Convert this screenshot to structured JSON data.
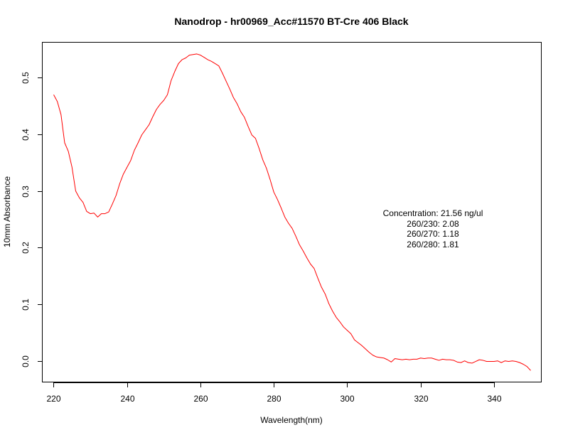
{
  "chart_data": {
    "type": "line",
    "title": "Nanodrop - hr00969_Acc#11570 BT-Cre 406 Black",
    "xlabel": "Wavelength(nm)",
    "ylabel": "10mm Absorbance",
    "xlim": [
      217,
      353
    ],
    "ylim": [
      -0.038,
      0.562
    ],
    "x_ticks": [
      220,
      240,
      260,
      280,
      300,
      320,
      340
    ],
    "y_ticks": [
      0.0,
      0.1,
      0.2,
      0.3,
      0.4,
      0.5
    ],
    "x_tick_labels": [
      "220",
      "240",
      "260",
      "280",
      "300",
      "320",
      "340"
    ],
    "y_tick_labels": [
      "0.0",
      "0.1",
      "0.2",
      "0.3",
      "0.4",
      "0.5"
    ],
    "grid": false,
    "series": [
      {
        "color": "#ff0000",
        "x": [
          220,
          221,
          222,
          223,
          224,
          225,
          226,
          227,
          228,
          229,
          230,
          231,
          232,
          233,
          234,
          235,
          236,
          237,
          238,
          239,
          240,
          241,
          242,
          243,
          244,
          245,
          246,
          247,
          248,
          249,
          250,
          251,
          252,
          253,
          254,
          255,
          256,
          257,
          258,
          259,
          260,
          261,
          262,
          263,
          264,
          265,
          266,
          267,
          268,
          269,
          270,
          271,
          272,
          273,
          274,
          275,
          276,
          277,
          278,
          279,
          280,
          281,
          282,
          283,
          284,
          285,
          286,
          287,
          288,
          289,
          290,
          291,
          292,
          293,
          294,
          295,
          296,
          297,
          298,
          299,
          300,
          301,
          302,
          303,
          304,
          305,
          306,
          307,
          308,
          309,
          310,
          311,
          312,
          313,
          314,
          315,
          316,
          317,
          318,
          319,
          320,
          321,
          322,
          323,
          324,
          325,
          326,
          327,
          328,
          329,
          330,
          331,
          332,
          333,
          334,
          335,
          336,
          337,
          338,
          339,
          340,
          341,
          342,
          343,
          344,
          345,
          346,
          347,
          348,
          349,
          350
        ],
        "y": [
          0.47,
          0.458,
          0.435,
          0.385,
          0.37,
          0.342,
          0.3,
          0.288,
          0.28,
          0.264,
          0.26,
          0.261,
          0.254,
          0.26,
          0.26,
          0.263,
          0.277,
          0.292,
          0.313,
          0.33,
          0.342,
          0.354,
          0.372,
          0.385,
          0.399,
          0.408,
          0.417,
          0.431,
          0.444,
          0.453,
          0.46,
          0.47,
          0.495,
          0.511,
          0.525,
          0.532,
          0.535,
          0.54,
          0.541,
          0.542,
          0.54,
          0.536,
          0.532,
          0.529,
          0.525,
          0.521,
          0.508,
          0.494,
          0.48,
          0.465,
          0.454,
          0.44,
          0.43,
          0.414,
          0.399,
          0.393,
          0.375,
          0.355,
          0.34,
          0.32,
          0.298,
          0.285,
          0.27,
          0.254,
          0.243,
          0.234,
          0.22,
          0.205,
          0.194,
          0.182,
          0.171,
          0.163,
          0.146,
          0.13,
          0.118,
          0.101,
          0.088,
          0.077,
          0.069,
          0.06,
          0.054,
          0.048,
          0.037,
          0.032,
          0.027,
          0.021,
          0.015,
          0.01,
          0.007,
          0.006,
          0.005,
          0.002,
          -0.002,
          0.004,
          0.003,
          0.002,
          0.003,
          0.002,
          0.003,
          0.003,
          0.005,
          0.004,
          0.005,
          0.005,
          0.003,
          0.001,
          0.003,
          0.002,
          0.002,
          0.001,
          -0.002,
          -0.003,
          0.0,
          -0.003,
          -0.004,
          -0.001,
          0.002,
          0.001,
          -0.001,
          -0.001,
          -0.001,
          0.0,
          -0.003,
          0.0,
          -0.001,
          0.0,
          -0.001,
          -0.003,
          -0.006,
          -0.01,
          -0.017
        ]
      }
    ],
    "annotations": [
      {
        "text": "Concentration: 21.56 ng/ul"
      },
      {
        "text": "260/230: 2.08"
      },
      {
        "text": "260/270: 1.18"
      },
      {
        "text": "260/280: 1.81"
      }
    ]
  }
}
